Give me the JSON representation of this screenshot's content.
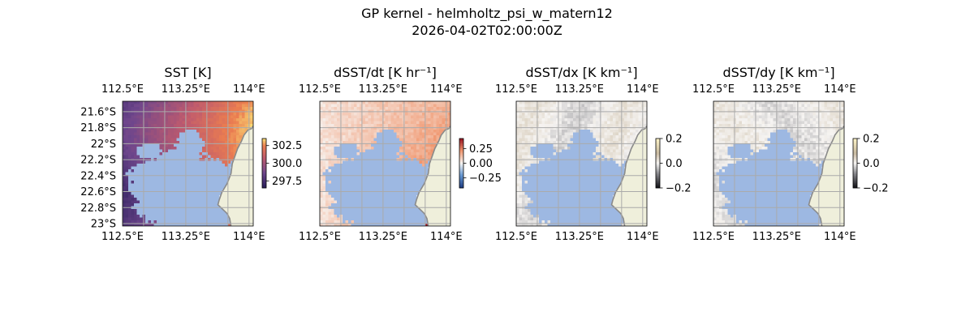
{
  "figure": {
    "title_line1": "GP kernel - helmholtz_psi_w_matern12",
    "title_line2": "2026-04-02T02:00:00Z"
  },
  "colors": {
    "land": "#efefdb",
    "nodata": "#9db8e2",
    "coast": "#8a8a8a",
    "grid": "#aaaaaa"
  },
  "chart_data": [
    {
      "type": "heatmap",
      "title": "SST [K]",
      "colormap": "plasma-muted",
      "x_ticks": [
        "112.5°E",
        "113.25°E",
        "114°E"
      ],
      "x_tick_values": [
        112.5,
        113.25,
        114.0
      ],
      "y_ticks": [
        "21.6°S",
        "21.8°S",
        "22°S",
        "22.2°S",
        "22.4°S",
        "22.6°S",
        "22.8°S",
        "23°S"
      ],
      "y_tick_values": [
        -21.6,
        -21.8,
        -22.0,
        -22.2,
        -22.4,
        -22.6,
        -22.8,
        -23.0
      ],
      "show_y_ticks": true,
      "lon_range": [
        112.5,
        114.05
      ],
      "lat_range": [
        -23.03,
        -21.47
      ],
      "colorbar": {
        "ticks": [
          "302.5",
          "300.0",
          "297.5"
        ],
        "tick_values": [
          302.5,
          300.0,
          297.5
        ],
        "range": [
          296.5,
          303.5
        ]
      },
      "grid": true
    },
    {
      "type": "heatmap",
      "title": "dSST/dt [K hr⁻¹]",
      "colormap": "RdBu_r",
      "x_ticks": [
        "112.5°E",
        "113.25°E",
        "114°E"
      ],
      "x_tick_values": [
        112.5,
        113.25,
        114.0
      ],
      "y_ticks": [],
      "show_y_ticks": false,
      "lon_range": [
        112.5,
        114.05
      ],
      "lat_range": [
        -23.03,
        -21.47
      ],
      "colorbar": {
        "ticks": [
          "0.25",
          "0.00",
          "−0.25"
        ],
        "tick_values": [
          0.25,
          0.0,
          -0.25
        ],
        "range": [
          -0.42,
          0.42
        ]
      },
      "grid": true
    },
    {
      "type": "heatmap",
      "title": "dSST/dx [K km⁻¹]",
      "colormap": "diverging-light",
      "x_ticks": [
        "112.5°E",
        "113.25°E",
        "114°E"
      ],
      "x_tick_values": [
        112.5,
        113.25,
        114.0
      ],
      "y_ticks": [],
      "show_y_ticks": false,
      "lon_range": [
        112.5,
        114.05
      ],
      "lat_range": [
        -23.03,
        -21.47
      ],
      "colorbar": {
        "ticks": [
          "0.2",
          "0.0",
          "−0.2"
        ],
        "tick_values": [
          0.2,
          0.0,
          -0.2
        ],
        "range": [
          -0.2,
          0.2
        ]
      },
      "grid": true
    },
    {
      "type": "heatmap",
      "title": "dSST/dy [K km⁻¹]",
      "colormap": "diverging-light",
      "x_ticks": [
        "112.5°E",
        "113.25°E",
        "114°E"
      ],
      "x_tick_values": [
        112.5,
        113.25,
        114.0
      ],
      "y_ticks": [],
      "show_y_ticks": false,
      "lon_range": [
        112.5,
        114.05
      ],
      "lat_range": [
        -23.03,
        -21.47
      ],
      "colorbar": {
        "ticks": [
          "0.2",
          "0.0",
          "−0.2"
        ],
        "tick_values": [
          0.2,
          0.0,
          -0.2
        ],
        "range": [
          -0.2,
          0.2
        ]
      },
      "grid": true
    }
  ]
}
